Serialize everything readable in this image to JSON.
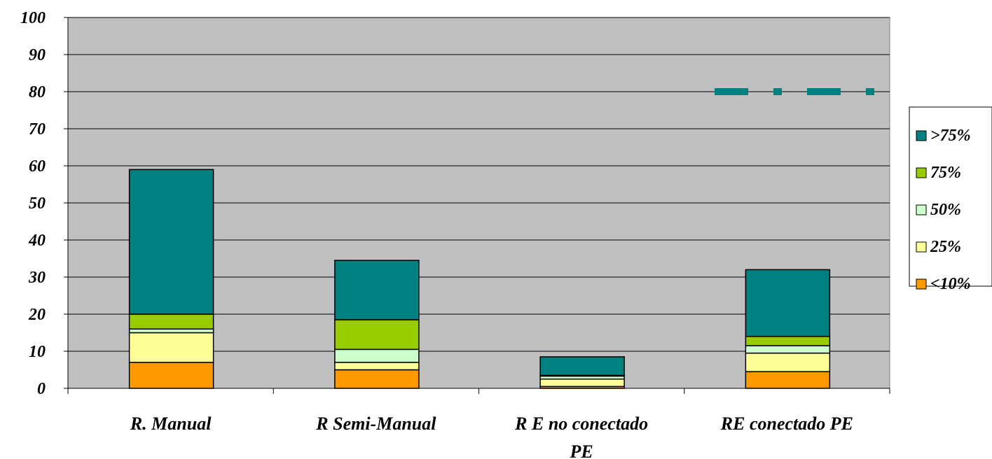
{
  "chart_data": {
    "type": "bar",
    "stacked": true,
    "categories": [
      [
        "R. Manual"
      ],
      [
        "R Semi-Manual"
      ],
      [
        "R E no conectado",
        "PE"
      ],
      [
        "RE conectado PE"
      ]
    ],
    "series": [
      {
        "name": "<10%",
        "color": "#ff9900",
        "values": [
          7,
          5,
          0.5,
          4.5
        ]
      },
      {
        "name": "25%",
        "color": "#ffff99",
        "values": [
          8,
          2,
          2,
          5
        ]
      },
      {
        "name": "50%",
        "color": "#ccffcc",
        "values": [
          1,
          3.5,
          0.8,
          2
        ]
      },
      {
        "name": ">75%_pre",
        "color": "#99cc00",
        "values": [
          4,
          8,
          0.2,
          2.5
        ]
      },
      {
        "name": ">75%",
        "color": "#008080",
        "values": [
          39,
          16,
          5,
          18
        ]
      }
    ],
    "legend": [
      {
        "name": ">75%",
        "color": "#008080"
      },
      {
        "name": "75%",
        "color": "#99cc00"
      },
      {
        "name": "50%",
        "color": "#ccffcc"
      },
      {
        "name": "25%",
        "color": "#ffff99"
      },
      {
        "name": "<10%",
        "color": "#ff9900"
      }
    ],
    "ylim": [
      0,
      100
    ],
    "yticks": [
      "0",
      "10",
      "20",
      "30",
      "40",
      "50",
      "60",
      "70",
      "80",
      "90",
      "100"
    ],
    "grid": true,
    "legend_position": "right",
    "plot_background": "#c0c0c0",
    "reference_line": {
      "y": 80,
      "color": "#008080",
      "style": "dash-dot"
    }
  }
}
